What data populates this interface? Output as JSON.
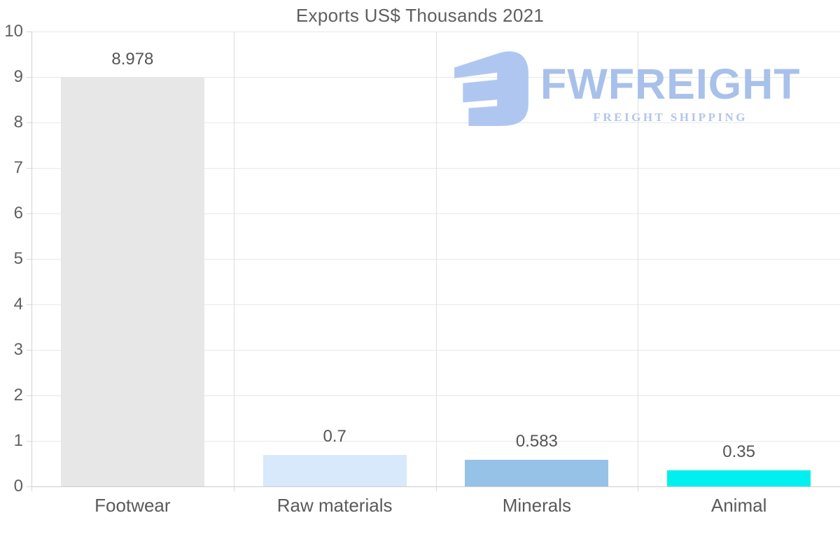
{
  "page": {
    "title": "Exports US$ Thousands 2021"
  },
  "watermark": {
    "brand": "FWFREIGHT",
    "tagline": "FREIGHT SHIPPING",
    "icon_color": "#a7c2ef",
    "brand_color": "#9fbbe8",
    "tagline_color": "#a9c0e9"
  },
  "chart_data": {
    "type": "bar",
    "title": "Exports US$ Thousands 2021",
    "categories": [
      "Footwear",
      "Raw materials",
      "Minerals",
      "Animal"
    ],
    "values": [
      8.978,
      0.7,
      0.583,
      0.35
    ],
    "value_labels": [
      "8.978",
      "0.7",
      "0.583",
      "0.35"
    ],
    "bar_colors": [
      "#e7e7e7",
      "#d7e9fa",
      "#97c2e8",
      "#00f0f0"
    ],
    "xlabel": "",
    "ylabel": "",
    "ylim": [
      0,
      10
    ],
    "yticks": [
      0,
      1,
      2,
      3,
      4,
      5,
      6,
      7,
      8,
      9,
      10
    ],
    "grid": "on",
    "legend": "none",
    "text_color": "#5d5d5d"
  }
}
